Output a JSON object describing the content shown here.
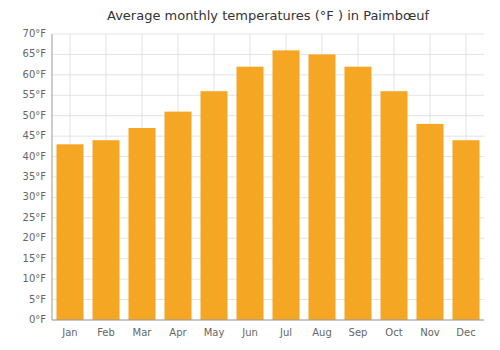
{
  "chart_data": {
    "type": "bar",
    "title": "Average monthly temperatures (°F ) in Paimbœuf",
    "categories": [
      "Jan",
      "Feb",
      "Mar",
      "Apr",
      "May",
      "Jun",
      "Jul",
      "Aug",
      "Sep",
      "Oct",
      "Nov",
      "Dec"
    ],
    "values": [
      43,
      44,
      47,
      51,
      56,
      62,
      66,
      65,
      62,
      56,
      48,
      44
    ],
    "color": "#F5A623",
    "ylim": [
      0,
      70
    ],
    "yticks": [
      {
        "value": 0,
        "label": "0°F"
      },
      {
        "value": 5,
        "label": "5°F"
      },
      {
        "value": 10,
        "label": "10°F"
      },
      {
        "value": 15,
        "label": "15°F"
      },
      {
        "value": 20,
        "label": "20°F"
      },
      {
        "value": 25,
        "label": "25°F"
      },
      {
        "value": 30,
        "label": "30°F"
      },
      {
        "value": 35,
        "label": "35°F"
      },
      {
        "value": 40,
        "label": "40°F"
      },
      {
        "value": 45,
        "label": "45°F"
      },
      {
        "value": 50,
        "label": "50°F"
      },
      {
        "value": 55,
        "label": "55°F"
      },
      {
        "value": 60,
        "label": "60°F"
      },
      {
        "value": 65,
        "label": "65°F"
      },
      {
        "value": 70,
        "label": "70°F"
      }
    ],
    "grid": true
  }
}
